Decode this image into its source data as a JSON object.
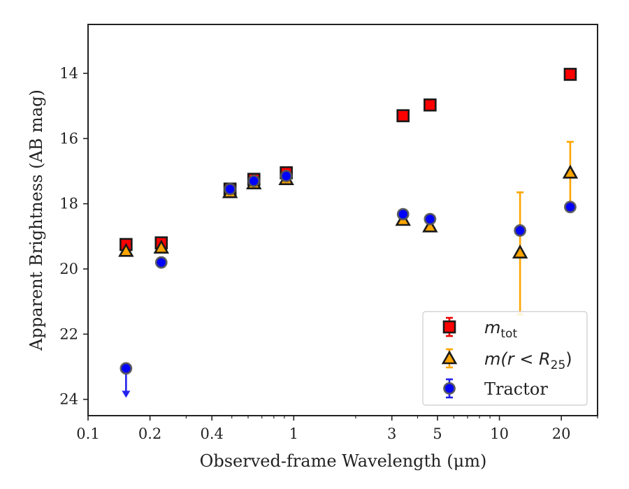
{
  "chart_data": {
    "type": "scatter",
    "title": "",
    "xlabel": "Observed-frame Wavelength (μm)",
    "ylabel": "Apparent Brightness (AB mag)",
    "xscale": "log",
    "xlim": [
      0.1,
      30
    ],
    "ylim": [
      24.5,
      12.5
    ],
    "y_inverted": true,
    "grid": false,
    "legend_position": "lower-right",
    "x_tick_labels": [
      "0.1",
      "0.2",
      "0.4",
      "1",
      "3",
      "5",
      "10",
      "20"
    ],
    "x_ticks": [
      0.1,
      0.2,
      0.4,
      1,
      3,
      5,
      10,
      20
    ],
    "y_tick_labels": [
      "14",
      "16",
      "18",
      "20",
      "22",
      "24"
    ],
    "y_ticks": [
      14,
      16,
      18,
      20,
      22,
      24
    ],
    "series": [
      {
        "name_main": "m",
        "name_sub": "tot",
        "marker": "square",
        "color": "#ff0000",
        "edge": "#1a1a1a",
        "points": [
          {
            "x": 0.153,
            "y": 19.25
          },
          {
            "x": 0.227,
            "y": 19.2
          },
          {
            "x": 0.49,
            "y": 17.55
          },
          {
            "x": 0.64,
            "y": 17.25
          },
          {
            "x": 0.92,
            "y": 17.05
          },
          {
            "x": 3.4,
            "y": 15.3
          },
          {
            "x": 4.6,
            "y": 14.97
          },
          {
            "x": 22.1,
            "y": 14.03
          }
        ]
      },
      {
        "name_main": "m(r < R",
        "name_sub": "25",
        "name_end": ")",
        "marker": "triangle",
        "color": "#ffa500",
        "edge": "#1a1a1a",
        "points": [
          {
            "x": 0.153,
            "y": 19.45
          },
          {
            "x": 0.227,
            "y": 19.35
          },
          {
            "x": 0.49,
            "y": 17.65
          },
          {
            "x": 0.64,
            "y": 17.38
          },
          {
            "x": 0.92,
            "y": 17.25
          },
          {
            "x": 3.4,
            "y": 18.5
          },
          {
            "x": 4.6,
            "y": 18.7
          },
          {
            "x": 12.6,
            "y": 19.5,
            "yerr": [
              1.85,
              1.9
            ]
          },
          {
            "x": 22.1,
            "y": 17.05,
            "yerr": [
              0.95,
              0.95
            ]
          }
        ]
      },
      {
        "name": "Tractor",
        "marker": "circle",
        "color": "#0000ff",
        "edge": "#555555",
        "points": [
          {
            "x": 0.153,
            "y": 23.05,
            "upper_limit": true
          },
          {
            "x": 0.227,
            "y": 19.8
          },
          {
            "x": 0.49,
            "y": 17.55
          },
          {
            "x": 0.64,
            "y": 17.3
          },
          {
            "x": 0.92,
            "y": 17.15
          },
          {
            "x": 3.4,
            "y": 18.32
          },
          {
            "x": 4.6,
            "y": 18.47
          },
          {
            "x": 12.6,
            "y": 18.82
          },
          {
            "x": 22.1,
            "y": 18.1
          }
        ]
      }
    ]
  }
}
